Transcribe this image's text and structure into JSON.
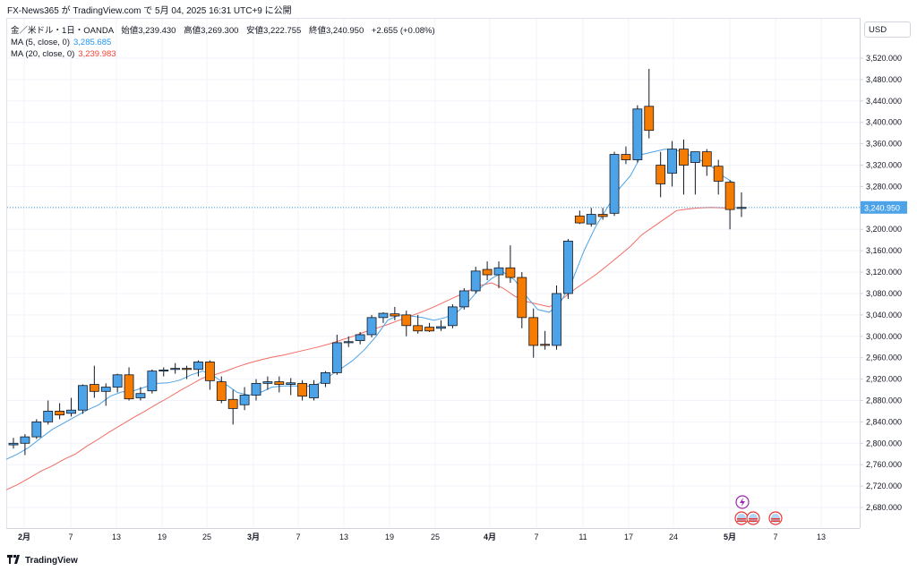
{
  "header": {
    "text": "FX-News365 が TradingView.com で 5月 04, 2025 16:31 UTC+9 に公開"
  },
  "legend": {
    "symbol": "金／米ドル・1日・OANDA",
    "open_label": "始値",
    "open": "3,239.430",
    "high_label": "高値",
    "high": "3,269.300",
    "low_label": "安値",
    "low": "3,222.755",
    "close_label": "終値",
    "close": "3,240.950",
    "change": "+2.655 (+0.08%)",
    "ma5_label": "MA (5, close, 0)",
    "ma5_value": "3,285.685",
    "ma20_label": "MA (20, close, 0)",
    "ma20_value": "3,239.983"
  },
  "currency": "USD",
  "footer": {
    "brand": "TradingView"
  },
  "colors": {
    "up": "#4da3e8",
    "down": "#f57c00",
    "ma5": "#4da3e8",
    "ma20": "#f26b63",
    "price_line": "#4da3e8"
  },
  "chart_data": {
    "type": "candlestick",
    "y_ticks": [
      "2,680.000",
      "2,720.000",
      "2,760.000",
      "2,800.000",
      "2,840.000",
      "2,880.000",
      "2,920.000",
      "2,960.000",
      "3,000.000",
      "3,040.000",
      "3,080.000",
      "3,120.000",
      "3,160.000",
      "3,200.000",
      "3,240.000",
      "3,280.000",
      "3,320.000",
      "3,360.000",
      "3,400.000",
      "3,440.000",
      "3,480.000",
      "3,520.000"
    ],
    "y_tick_values": [
      2680,
      2720,
      2760,
      2800,
      2840,
      2880,
      2920,
      2960,
      3000,
      3040,
      3080,
      3120,
      3160,
      3200,
      3240,
      3280,
      3320,
      3360,
      3400,
      3440,
      3480,
      3520
    ],
    "ylim": [
      2650,
      3550
    ],
    "x_labels": [
      {
        "text": "2月",
        "bar": 1,
        "month": true
      },
      {
        "text": "7",
        "bar": 5
      },
      {
        "text": "13",
        "bar": 9
      },
      {
        "text": "19",
        "bar": 13
      },
      {
        "text": "25",
        "bar": 17
      },
      {
        "text": "3月",
        "bar": 21,
        "month": true
      },
      {
        "text": "7",
        "bar": 25
      },
      {
        "text": "13",
        "bar": 29
      },
      {
        "text": "19",
        "bar": 33
      },
      {
        "text": "25",
        "bar": 37
      },
      {
        "text": "4月",
        "bar": 41,
        "month": true
      },
      {
        "text": "7",
        "bar": 45
      },
      {
        "text": "11",
        "bar": 49
      },
      {
        "text": "17",
        "bar": 53
      },
      {
        "text": "24",
        "bar": 57
      },
      {
        "text": "5月",
        "bar": 61,
        "month": true
      },
      {
        "text": "7",
        "bar": 65
      },
      {
        "text": "13",
        "bar": 69
      }
    ],
    "last_price_label": "3,240.950",
    "last_price": 3240.95,
    "candles": [
      {
        "o": 2797,
        "h": 2810,
        "l": 2790,
        "c": 2800
      },
      {
        "o": 2800,
        "h": 2817,
        "l": 2778,
        "c": 2812
      },
      {
        "o": 2812,
        "h": 2845,
        "l": 2808,
        "c": 2840
      },
      {
        "o": 2840,
        "h": 2880,
        "l": 2835,
        "c": 2860
      },
      {
        "o": 2860,
        "h": 2875,
        "l": 2845,
        "c": 2853
      },
      {
        "o": 2856,
        "h": 2885,
        "l": 2850,
        "c": 2862
      },
      {
        "o": 2862,
        "h": 2910,
        "l": 2855,
        "c": 2908
      },
      {
        "o": 2910,
        "h": 2945,
        "l": 2885,
        "c": 2897
      },
      {
        "o": 2897,
        "h": 2912,
        "l": 2870,
        "c": 2905
      },
      {
        "o": 2905,
        "h": 2930,
        "l": 2895,
        "c": 2928
      },
      {
        "o": 2928,
        "h": 2942,
        "l": 2880,
        "c": 2883
      },
      {
        "o": 2885,
        "h": 2905,
        "l": 2880,
        "c": 2893
      },
      {
        "o": 2898,
        "h": 2938,
        "l": 2893,
        "c": 2935
      },
      {
        "o": 2935,
        "h": 2942,
        "l": 2925,
        "c": 2937
      },
      {
        "o": 2938,
        "h": 2950,
        "l": 2930,
        "c": 2940
      },
      {
        "o": 2940,
        "h": 2945,
        "l": 2920,
        "c": 2938
      },
      {
        "o": 2938,
        "h": 2955,
        "l": 2925,
        "c": 2952
      },
      {
        "o": 2952,
        "h": 2955,
        "l": 2900,
        "c": 2917
      },
      {
        "o": 2915,
        "h": 2925,
        "l": 2875,
        "c": 2880
      },
      {
        "o": 2882,
        "h": 2900,
        "l": 2835,
        "c": 2865
      },
      {
        "o": 2872,
        "h": 2905,
        "l": 2862,
        "c": 2890
      },
      {
        "o": 2890,
        "h": 2920,
        "l": 2880,
        "c": 2912
      },
      {
        "o": 2912,
        "h": 2925,
        "l": 2900,
        "c": 2915
      },
      {
        "o": 2915,
        "h": 2925,
        "l": 2895,
        "c": 2910
      },
      {
        "o": 2910,
        "h": 2922,
        "l": 2890,
        "c": 2913
      },
      {
        "o": 2912,
        "h": 2918,
        "l": 2880,
        "c": 2888
      },
      {
        "o": 2885,
        "h": 2918,
        "l": 2880,
        "c": 2910
      },
      {
        "o": 2912,
        "h": 2935,
        "l": 2905,
        "c": 2932
      },
      {
        "o": 2932,
        "h": 3003,
        "l": 2928,
        "c": 2988
      },
      {
        "o": 2988,
        "h": 3000,
        "l": 2980,
        "c": 2990
      },
      {
        "o": 2992,
        "h": 3008,
        "l": 2985,
        "c": 3003
      },
      {
        "o": 3003,
        "h": 3040,
        "l": 2998,
        "c": 3035
      },
      {
        "o": 3035,
        "h": 3045,
        "l": 3025,
        "c": 3043
      },
      {
        "o": 3042,
        "h": 3055,
        "l": 3030,
        "c": 3038
      },
      {
        "o": 3040,
        "h": 3048,
        "l": 3000,
        "c": 3020
      },
      {
        "o": 3020,
        "h": 3040,
        "l": 3005,
        "c": 3010
      },
      {
        "o": 3017,
        "h": 3025,
        "l": 3008,
        "c": 3010
      },
      {
        "o": 3015,
        "h": 3030,
        "l": 3010,
        "c": 3018
      },
      {
        "o": 3020,
        "h": 3060,
        "l": 3015,
        "c": 3055
      },
      {
        "o": 3055,
        "h": 3090,
        "l": 3050,
        "c": 3085
      },
      {
        "o": 3085,
        "h": 3130,
        "l": 3080,
        "c": 3122
      },
      {
        "o": 3125,
        "h": 3140,
        "l": 3105,
        "c": 3115
      },
      {
        "o": 3115,
        "h": 3140,
        "l": 3090,
        "c": 3128
      },
      {
        "o": 3128,
        "h": 3170,
        "l": 3100,
        "c": 3110
      },
      {
        "o": 3110,
        "h": 3120,
        "l": 3015,
        "c": 3035
      },
      {
        "o": 3035,
        "h": 3052,
        "l": 2960,
        "c": 2983
      },
      {
        "o": 2985,
        "h": 3010,
        "l": 2975,
        "c": 2983
      },
      {
        "o": 2983,
        "h": 3095,
        "l": 2975,
        "c": 3080
      },
      {
        "o": 3080,
        "h": 3182,
        "l": 3070,
        "c": 3178
      },
      {
        "o": 3225,
        "h": 3235,
        "l": 3210,
        "c": 3212
      },
      {
        "o": 3210,
        "h": 3240,
        "l": 3205,
        "c": 3228
      },
      {
        "o": 3228,
        "h": 3240,
        "l": 3218,
        "c": 3224
      },
      {
        "o": 3230,
        "h": 3345,
        "l": 3225,
        "c": 3340
      },
      {
        "o": 3340,
        "h": 3355,
        "l": 3322,
        "c": 3330
      },
      {
        "o": 3330,
        "h": 3432,
        "l": 3325,
        "c": 3425
      },
      {
        "o": 3430,
        "h": 3500,
        "l": 3370,
        "c": 3385
      },
      {
        "o": 3320,
        "h": 3345,
        "l": 3260,
        "c": 3285
      },
      {
        "o": 3305,
        "h": 3365,
        "l": 3280,
        "c": 3350
      },
      {
        "o": 3350,
        "h": 3368,
        "l": 3265,
        "c": 3320
      },
      {
        "o": 3325,
        "h": 3345,
        "l": 3265,
        "c": 3345
      },
      {
        "o": 3345,
        "h": 3350,
        "l": 3300,
        "c": 3318
      },
      {
        "o": 3318,
        "h": 3330,
        "l": 3265,
        "c": 3290
      },
      {
        "o": 3288,
        "h": 3292,
        "l": 3200,
        "c": 3237
      },
      {
        "o": 3239,
        "h": 3269,
        "l": 3223,
        "c": 3241
      }
    ],
    "candle_positions": [
      0,
      1,
      2,
      3,
      4,
      5,
      6,
      7,
      8,
      9,
      10,
      11,
      12,
      13,
      14,
      15,
      16,
      17,
      18,
      19,
      20,
      21,
      22,
      23,
      24,
      25,
      26,
      27,
      28,
      29,
      30,
      31,
      32,
      33,
      34,
      35,
      36,
      37,
      38,
      39,
      40,
      41,
      42,
      43,
      44,
      45,
      46,
      47,
      48,
      49,
      50,
      51,
      52,
      53,
      54,
      55,
      56,
      57,
      58,
      59,
      60,
      61,
      62,
      63
    ],
    "ma5": [
      2770,
      2780,
      2793,
      2810,
      2826,
      2838,
      2850,
      2862,
      2872,
      2888,
      2896,
      2898,
      2905,
      2912,
      2913,
      2918,
      2928,
      2935,
      2925,
      2910,
      2895,
      2890,
      2895,
      2905,
      2907,
      2907,
      2906,
      2911,
      2926,
      2940,
      2955,
      2975,
      3000,
      3030,
      3040,
      3038,
      3035,
      3030,
      3035,
      3045,
      3065,
      3090,
      3108,
      3120,
      3105,
      3075,
      3050,
      3045,
      3065,
      3105,
      3160,
      3205,
      3240,
      3275,
      3300,
      3340,
      3345,
      3350,
      3348,
      3340,
      3330,
      3318,
      3300,
      3286
    ],
    "ma20": [
      2713,
      2723,
      2735,
      2748,
      2758,
      2770,
      2780,
      2795,
      2808,
      2822,
      2835,
      2848,
      2860,
      2873,
      2885,
      2898,
      2910,
      2922,
      2928,
      2935,
      2943,
      2950,
      2956,
      2961,
      2965,
      2970,
      2975,
      2980,
      2986,
      2993,
      3000,
      3008,
      3015,
      3022,
      3030,
      3038,
      3046,
      3055,
      3065,
      3075,
      3085,
      3095,
      3100,
      3090,
      3075,
      3065,
      3060,
      3055,
      3068,
      3085,
      3100,
      3115,
      3132,
      3150,
      3168,
      3190,
      3205,
      3220,
      3235,
      3238,
      3240,
      3241,
      3240,
      3240
    ]
  },
  "events": {
    "lightning_icon": "lightning-icon",
    "us_flags": "us-flag-icon"
  }
}
